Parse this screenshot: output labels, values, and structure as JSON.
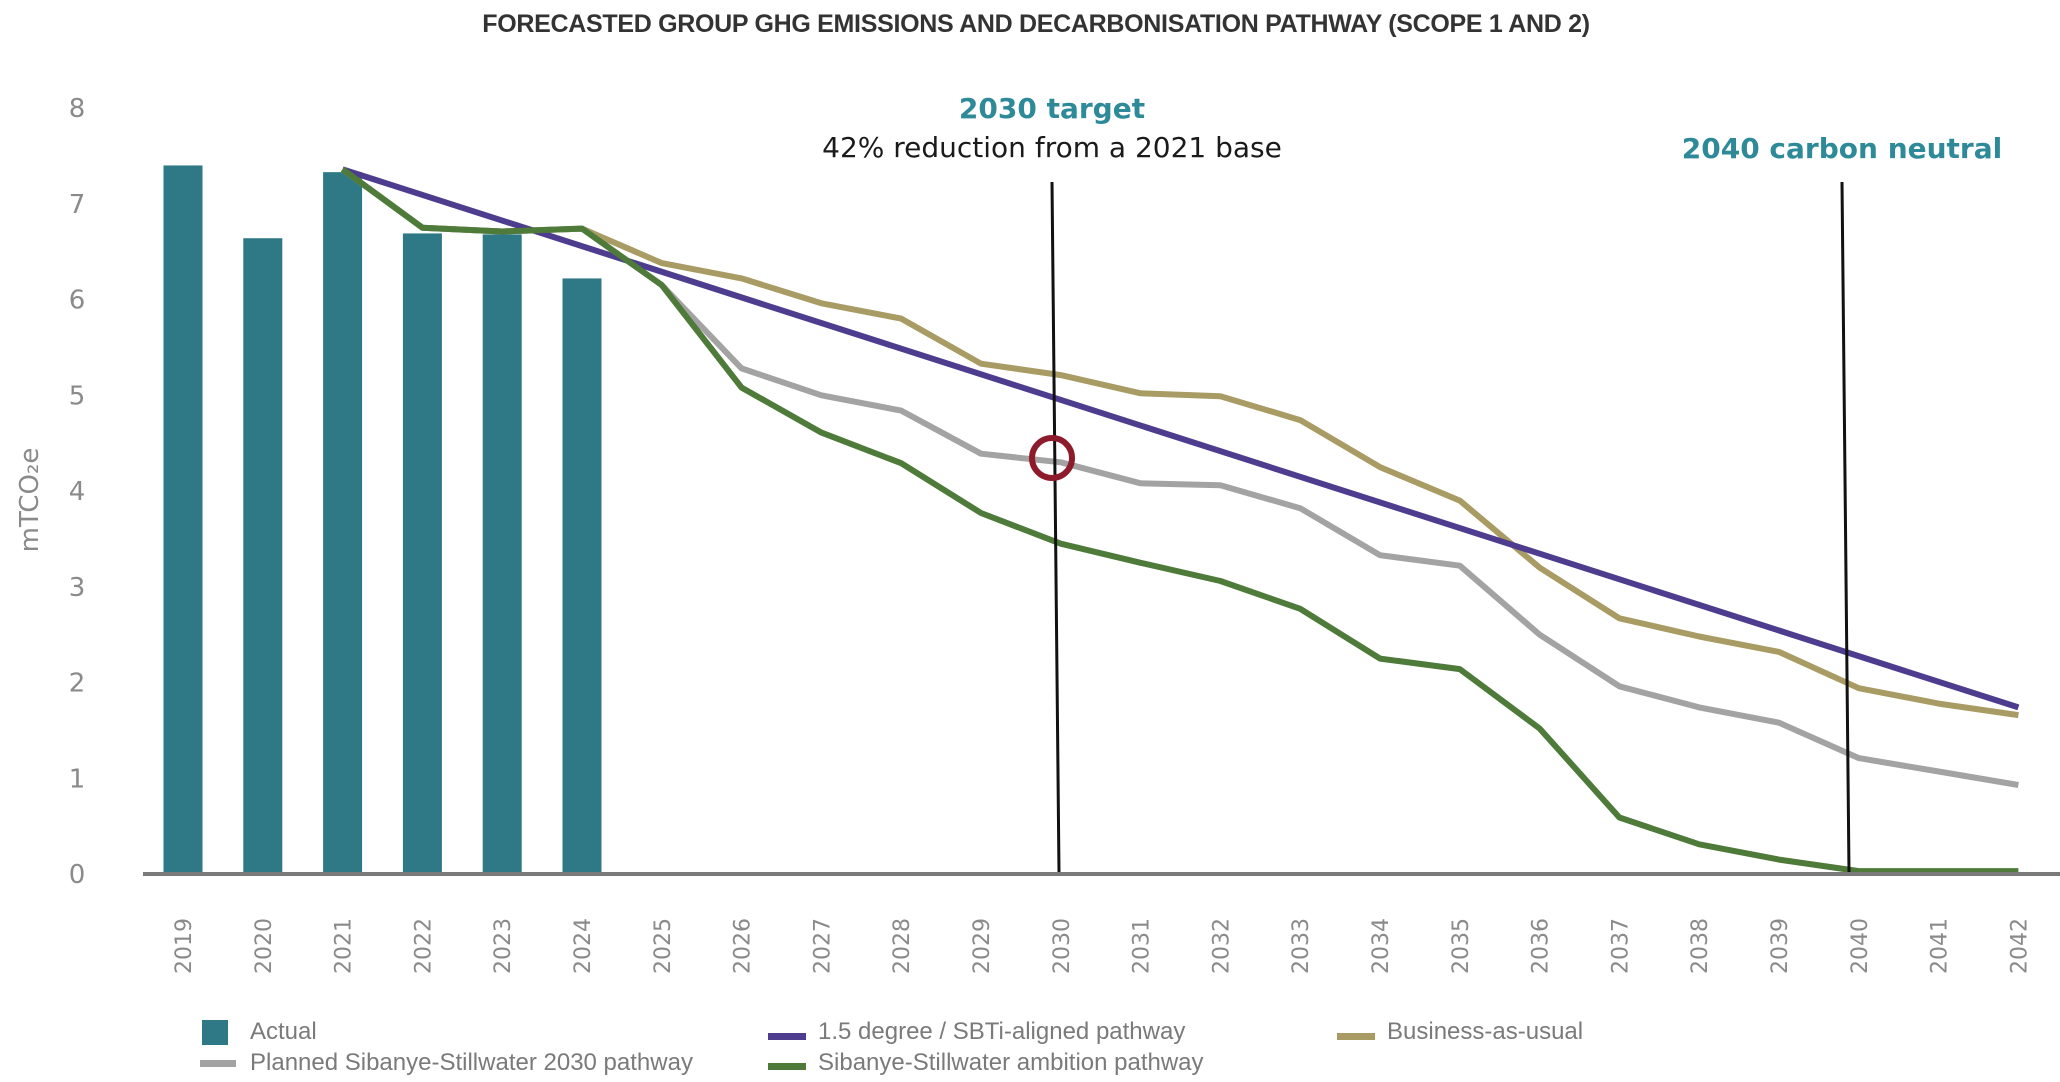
{
  "chart_data": {
    "type": "bar+line",
    "title": "FORECASTED GROUP GHG EMISSIONS AND DECARBONISATION PATHWAY (SCOPE 1 AND 2)",
    "xlabel": "",
    "ylabel": "mTCO₂e",
    "ylim": [
      0,
      8
    ],
    "yticks": [
      "0",
      "1",
      "2",
      "3",
      "4",
      "5",
      "6",
      "7",
      "8"
    ],
    "grid": false,
    "legend_position": "bottom-left",
    "categories": [
      "2019",
      "2020",
      "2021",
      "2022",
      "2023",
      "2024",
      "2025",
      "2026",
      "2027",
      "2028",
      "2029",
      "2030",
      "2031",
      "2032",
      "2033",
      "2034",
      "2035",
      "2036",
      "2037",
      "2038",
      "2039",
      "2040",
      "2041",
      "2042"
    ],
    "bars": {
      "name": "Actual",
      "color": "#2F7885",
      "values": [
        7.4,
        6.64,
        7.33,
        6.69,
        6.68,
        6.22,
        null,
        null,
        null,
        null,
        null,
        null,
        null,
        null,
        null,
        null,
        null,
        null,
        null,
        null,
        null,
        null,
        null,
        null
      ]
    },
    "series": [
      {
        "name": "Business-as-usual",
        "color": "#A89C64",
        "values": [
          null,
          null,
          7.36,
          6.75,
          6.71,
          6.74,
          6.38,
          6.22,
          5.96,
          5.8,
          5.33,
          5.21,
          5.02,
          4.99,
          4.74,
          4.25,
          3.9,
          3.2,
          2.67,
          2.48,
          2.32,
          1.94,
          1.78,
          1.66
        ]
      },
      {
        "name": "Planned Sibanye-Stillwater 2030 pathway",
        "color": "#A3A3A3",
        "values": [
          null,
          null,
          7.36,
          6.75,
          6.71,
          6.74,
          6.15,
          5.28,
          5.0,
          4.84,
          4.39,
          4.3,
          4.08,
          4.06,
          3.82,
          3.33,
          3.22,
          2.5,
          1.96,
          1.74,
          1.58,
          1.21,
          1.07,
          0.93
        ]
      },
      {
        "name": "1.5 degree / SBTi-aligned pathway",
        "color": "#4E3C8E",
        "values": [
          null,
          null,
          7.36,
          7.1,
          6.84,
          6.58,
          6.32,
          6.06,
          5.8,
          5.54,
          5.28,
          4.34,
          4.09,
          3.85,
          3.6,
          3.35,
          3.11,
          2.86,
          2.62,
          2.37,
          2.12,
          2.03,
          1.89,
          1.74
        ]
      },
      {
        "name": "Sibanye-Stillwater ambition pathway",
        "color": "#4E7A3A",
        "values": [
          null,
          null,
          7.36,
          6.75,
          6.71,
          6.74,
          6.15,
          5.08,
          4.61,
          4.29,
          3.77,
          3.45,
          3.25,
          3.06,
          2.77,
          2.25,
          2.14,
          1.52,
          0.59,
          0.31,
          0.15,
          0.03,
          0.03,
          0.03
        ]
      }
    ],
    "annotations": [
      {
        "year": "2030",
        "title": "2030 target",
        "subtitle": "42% reduction from a 2021 base",
        "marker": "circle",
        "marker_value": 4.32
      },
      {
        "year": "2040",
        "title": "2040 carbon neutral"
      }
    ],
    "legend": [
      {
        "label": "Actual",
        "type": "box",
        "color": "#2F7885"
      },
      {
        "label": "1.5 degree / SBTi-aligned pathway",
        "type": "line",
        "color": "#4E3C8E"
      },
      {
        "label": "Business-as-usual",
        "type": "line",
        "color": "#A89C64"
      },
      {
        "label": "Planned Sibanye-Stillwater 2030 pathway",
        "type": "line",
        "color": "#A3A3A3"
      },
      {
        "label": "Sibanye-Stillwater ambition pathway",
        "type": "line",
        "color": "#4E7A3A"
      }
    ]
  },
  "colors": {
    "annotation_accent": "#2E8A98",
    "target_marker": "#8E1B2B",
    "axis": "#7a7a7a",
    "marker_line": "#111111"
  }
}
